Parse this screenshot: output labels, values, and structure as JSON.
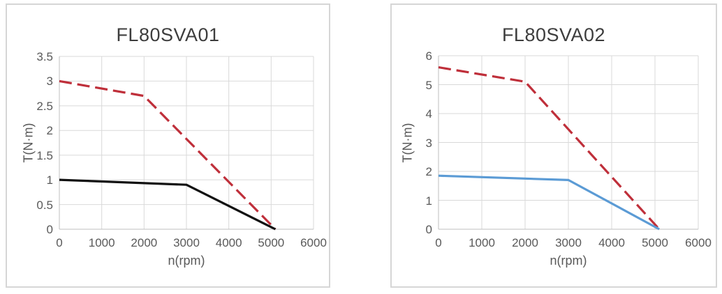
{
  "page": {
    "background": "#ffffff",
    "card_border_color": "#d6d6d6",
    "grid_color": "#d9d9d9",
    "axis_color": "#bfbfbf",
    "tick_text_color": "#595959",
    "title_text_color": "#3d3d3d"
  },
  "chart_data": [
    {
      "type": "line",
      "title": "FL80SVA01",
      "xlabel": "n(rpm)",
      "ylabel": "T(N·m)",
      "xlim": [
        0,
        6000
      ],
      "ylim": [
        0,
        3.5
      ],
      "xticks": [
        0,
        1000,
        2000,
        3000,
        4000,
        5000,
        6000
      ],
      "yticks": [
        0,
        0.5,
        1,
        1.5,
        2,
        2.5,
        3,
        3.5
      ],
      "grid": true,
      "legend": "none",
      "series": [
        {
          "name": "peak-torque",
          "line_style": "dashed",
          "color": "#bf2f3a",
          "points": [
            [
              0,
              3.0
            ],
            [
              2000,
              2.7
            ],
            [
              5100,
              0
            ]
          ]
        },
        {
          "name": "rated-torque",
          "line_style": "solid",
          "color": "#111111",
          "points": [
            [
              0,
              1.0
            ],
            [
              3000,
              0.9
            ],
            [
              5100,
              0
            ]
          ]
        }
      ]
    },
    {
      "type": "line",
      "title": "FL80SVA02",
      "xlabel": "n(rpm)",
      "ylabel": "T(N·m)",
      "xlim": [
        0,
        6000
      ],
      "ylim": [
        0,
        6
      ],
      "xticks": [
        0,
        1000,
        2000,
        3000,
        4000,
        5000,
        6000
      ],
      "yticks": [
        0,
        1,
        2,
        3,
        4,
        5,
        6
      ],
      "grid": true,
      "legend": "none",
      "series": [
        {
          "name": "peak-torque",
          "line_style": "dashed",
          "color": "#bf2f3a",
          "points": [
            [
              0,
              5.6
            ],
            [
              2000,
              5.1
            ],
            [
              5100,
              0
            ]
          ]
        },
        {
          "name": "rated-torque",
          "line_style": "solid",
          "color": "#5b9bd5",
          "points": [
            [
              0,
              1.85
            ],
            [
              3000,
              1.7
            ],
            [
              5100,
              0
            ]
          ]
        }
      ]
    }
  ]
}
